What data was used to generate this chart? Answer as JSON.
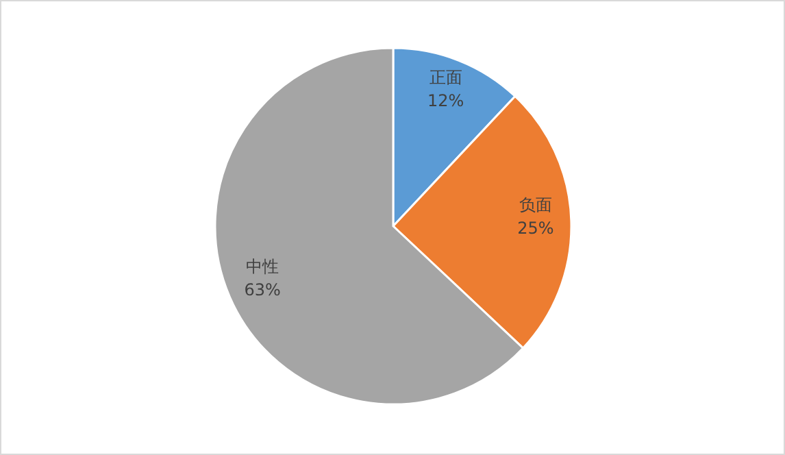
{
  "chart_data": {
    "type": "pie",
    "categories": [
      "正面",
      "负面",
      "中性"
    ],
    "values": [
      12,
      25,
      63
    ],
    "colors": [
      "#5b9bd5",
      "#ed7d31",
      "#a5a5a5"
    ],
    "value_labels": [
      "12%",
      "25%",
      "63%"
    ]
  }
}
